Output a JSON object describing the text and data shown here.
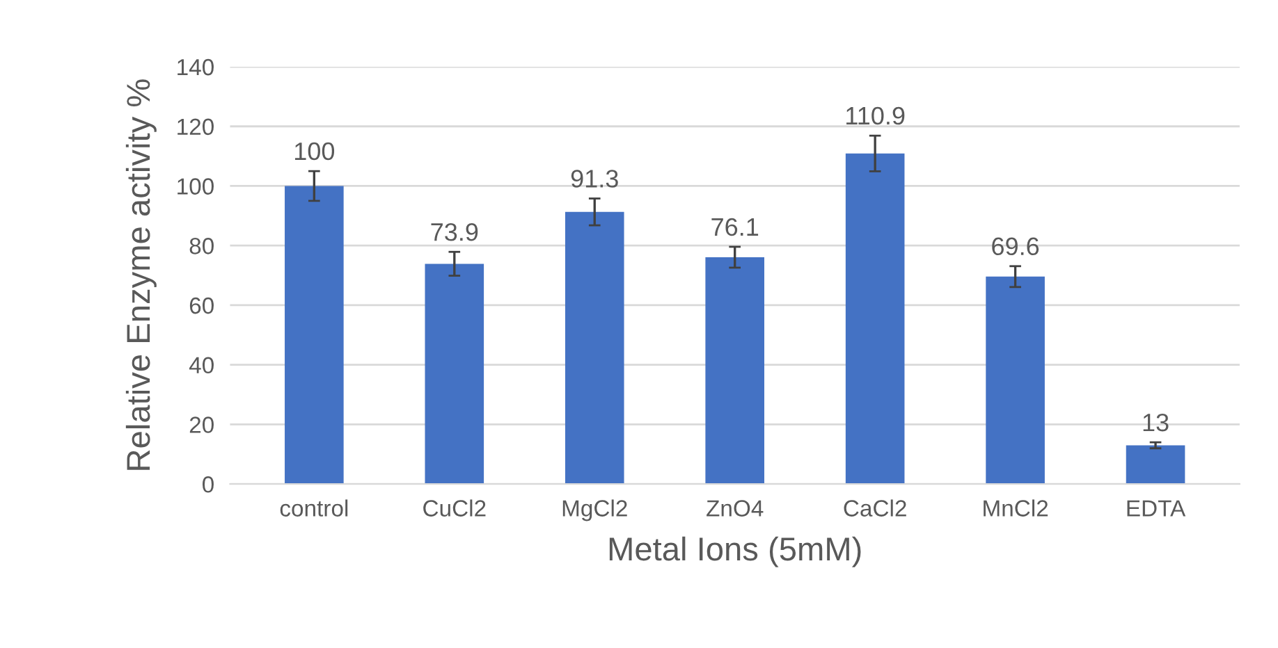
{
  "chart_data": {
    "type": "bar",
    "xlabel": "Metal Ions (5mM)",
    "ylabel": "Relative Enzyme activity %",
    "categories": [
      "control",
      "CuCl2",
      "MgCl2",
      "ZnO4",
      "CaCl2",
      "MnCl2",
      "EDTA"
    ],
    "values": [
      100,
      73.9,
      91.3,
      76.1,
      110.9,
      69.6,
      13
    ],
    "errors": [
      5,
      4,
      4.5,
      3.5,
      6,
      3.5,
      1
    ],
    "color": "#4472c4",
    "ylim": [
      0,
      140
    ],
    "yticks": [
      0,
      20,
      40,
      60,
      80,
      100,
      120,
      140
    ],
    "grid": "y",
    "data_labels": true
  }
}
